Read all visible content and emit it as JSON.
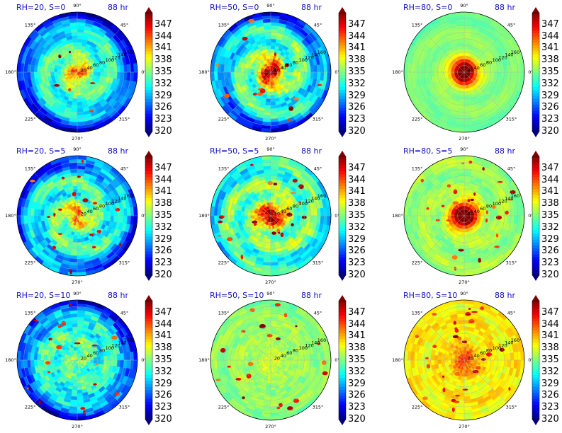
{
  "chart_data": {
    "type": "heatmap",
    "panels": [
      {
        "title": "RH=20, S=0",
        "time_label": "88 hr",
        "warm_core": 0.55,
        "bands": 0.45,
        "noise": 0.35,
        "outer_cold": 0.75,
        "spots": 0.15,
        "warm_bias": 0.0
      },
      {
        "title": "RH=50, S=0",
        "time_label": "88 hr",
        "warm_core": 0.85,
        "bands": 0.6,
        "noise": 0.4,
        "outer_cold": 0.6,
        "spots": 0.35,
        "warm_bias": 0.05
      },
      {
        "title": "RH=80, S=0",
        "time_label": "88 hr",
        "warm_core": 1.0,
        "bands": 0.15,
        "noise": 0.1,
        "outer_cold": 0.05,
        "spots": 0.0,
        "warm_bias": 0.25
      },
      {
        "title": "RH=20, S=5",
        "time_label": "88 hr",
        "warm_core": 0.5,
        "bands": 0.5,
        "noise": 0.45,
        "outer_cold": 0.55,
        "spots": 0.45,
        "warm_bias": 0.0
      },
      {
        "title": "RH=50, S=5",
        "time_label": "88 hr",
        "warm_core": 0.8,
        "bands": 0.5,
        "noise": 0.45,
        "outer_cold": 0.25,
        "spots": 0.55,
        "warm_bias": 0.15
      },
      {
        "title": "RH=80, S=5",
        "time_label": "88 hr",
        "warm_core": 1.0,
        "bands": 0.2,
        "noise": 0.2,
        "outer_cold": 0.0,
        "spots": 0.7,
        "warm_bias": 0.3
      },
      {
        "title": "RH=20, S=10",
        "time_label": "88 hr",
        "warm_core": 0.15,
        "bands": 0.35,
        "noise": 0.5,
        "outer_cold": 0.7,
        "spots": 0.45,
        "warm_bias": 0.0
      },
      {
        "title": "RH=50, S=10",
        "time_label": "88 hr",
        "warm_core": 0.1,
        "bands": 0.1,
        "noise": 0.25,
        "outer_cold": 0.05,
        "spots": 0.55,
        "warm_bias": 0.3
      },
      {
        "title": "RH=80, S=10",
        "time_label": "88 hr",
        "warm_core": 0.3,
        "bands": 0.15,
        "noise": 0.3,
        "outer_cold": 0.0,
        "spots": 0.8,
        "warm_bias": 0.6
      }
    ],
    "angle_ticks": [
      "90°",
      "45°",
      "0°",
      "315°",
      "270°",
      "225°",
      "180°",
      "135°"
    ],
    "radial_ticks": [
      "20",
      "40",
      "60",
      "80",
      "100",
      "120",
      "140",
      "160"
    ],
    "radial_range": [
      0,
      180
    ],
    "colorbar": {
      "ticks": [
        "347",
        "344",
        "341",
        "338",
        "335",
        "332",
        "329",
        "326",
        "323",
        "320"
      ],
      "range": [
        320,
        350
      ],
      "colormap": "jet"
    },
    "grid": true
  }
}
